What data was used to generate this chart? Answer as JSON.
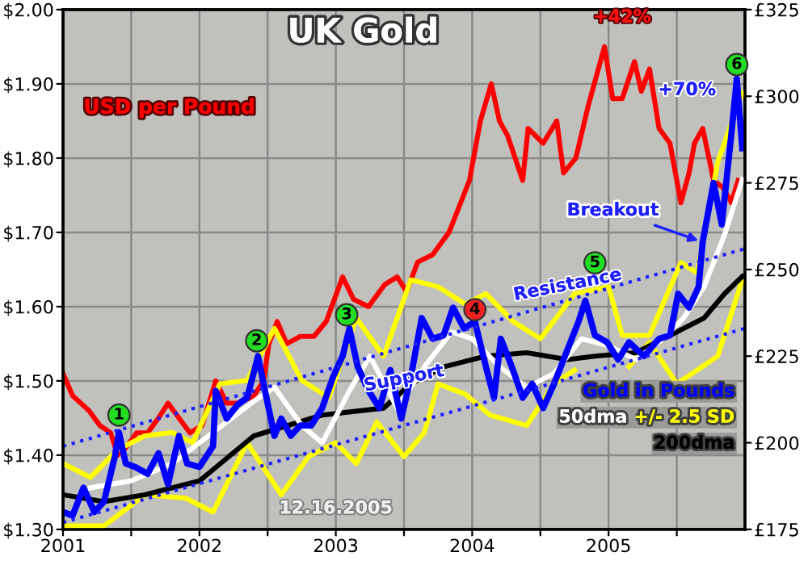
{
  "chart_data": {
    "type": "line",
    "title": "UK Gold",
    "xlim": [
      2001,
      2006
    ],
    "xticks": [
      2001,
      {
        "value": 2001.5,
        "label": null
      },
      2002,
      {
        "value": 2002.5,
        "label": null
      },
      2003,
      {
        "value": 2003.5,
        "label": null
      },
      2004,
      {
        "value": 2004.5,
        "label": null
      },
      2005,
      {
        "value": 2005.5,
        "label": null
      }
    ],
    "ylim": [
      1.3,
      2.0
    ],
    "yticks": [
      {
        "value": 1.3,
        "label": "$1.30"
      },
      {
        "value": 1.4,
        "label": "$1.40"
      },
      {
        "value": 1.5,
        "label": "$1.50"
      },
      {
        "value": 1.6,
        "label": "$1.60"
      },
      {
        "value": 1.7,
        "label": "$1.70"
      },
      {
        "value": 1.8,
        "label": "$1.80"
      },
      {
        "value": 1.9,
        "label": "$1.90"
      },
      {
        "value": 2.0,
        "label": "$2.00"
      }
    ],
    "y2lim": [
      175,
      325
    ],
    "y2ticks": [
      {
        "value": 175,
        "label": "£175"
      },
      {
        "value": 200,
        "label": "£200"
      },
      {
        "value": 225,
        "label": "£225"
      },
      {
        "value": 250,
        "label": "£250"
      },
      {
        "value": 275,
        "label": "£275"
      },
      {
        "value": 300,
        "label": "£300"
      },
      {
        "value": 325,
        "label": "£325"
      }
    ],
    "grid": true,
    "ylabel": "USD per Pound",
    "legend": "bottom right",
    "series": [
      {
        "name": null,
        "color": "#ff0000",
        "axis": "y",
        "x": [
          2001.0,
          2001.07,
          2001.19,
          2001.27,
          2001.35,
          2001.4,
          2001.46,
          2001.54,
          2001.62,
          2001.7,
          2001.77,
          2001.85,
          2001.93,
          2002.02,
          2002.12,
          2002.2,
          2002.29,
          2002.4,
          2002.47,
          2002.51,
          2002.57,
          2002.64,
          2002.74,
          2002.84,
          2002.93,
          2003.05,
          2003.13,
          2003.24,
          2003.36,
          2003.45,
          2003.52,
          2003.6,
          2003.71,
          2003.83,
          2003.98,
          2004.06,
          2004.14,
          2004.2,
          2004.26,
          2004.37,
          2004.41,
          2004.52,
          2004.62,
          2004.67,
          2004.76,
          2004.85,
          2004.97,
          2005.03,
          2005.1,
          2005.19,
          2005.24,
          2005.3,
          2005.37,
          2005.45,
          2005.53,
          2005.59,
          2005.63,
          2005.69,
          2005.77,
          2005.84,
          2005.9,
          2005.95
        ],
        "values": [
          1.51,
          1.48,
          1.46,
          1.44,
          1.43,
          1.4,
          1.41,
          1.43,
          1.43,
          1.45,
          1.47,
          1.45,
          1.43,
          1.44,
          1.5,
          1.47,
          1.47,
          1.48,
          1.5,
          1.55,
          1.58,
          1.55,
          1.56,
          1.56,
          1.58,
          1.64,
          1.61,
          1.6,
          1.63,
          1.64,
          1.62,
          1.66,
          1.67,
          1.7,
          1.77,
          1.85,
          1.9,
          1.85,
          1.83,
          1.77,
          1.84,
          1.82,
          1.85,
          1.78,
          1.8,
          1.87,
          1.95,
          1.88,
          1.88,
          1.93,
          1.89,
          1.92,
          1.84,
          1.82,
          1.74,
          1.78,
          1.82,
          1.84,
          1.77,
          1.76,
          1.74,
          1.77
        ]
      },
      {
        "name": null,
        "color": "#ffff00",
        "axis": "y2",
        "x": [
          2001.0,
          2001.3,
          2001.6,
          2001.9,
          2002.1,
          2002.35,
          2002.6,
          2002.8,
          2003.0,
          2003.15,
          2003.3,
          2003.5,
          2003.65,
          2003.75,
          2003.95,
          2004.13,
          2004.4,
          2004.6,
          2004.75,
          2004.9,
          2005.15,
          2005.3,
          2005.5,
          2005.65,
          2005.8,
          2005.98
        ],
        "values": [
          176,
          176,
          185,
          184,
          180,
          200,
          185,
          196,
          200,
          194,
          206,
          196,
          203,
          217,
          214,
          208,
          205,
          217,
          221,
          null,
          222,
          229,
          217,
          221,
          225,
          247
        ]
      },
      {
        "name": "+/- 2.5 SD",
        "color": "#ffff00",
        "axis": "y2",
        "x": [
          2001.0,
          2001.2,
          2001.4,
          2001.6,
          2001.8,
          2001.95,
          2002.15,
          2002.35,
          2002.55,
          2002.75,
          2002.95,
          2003.15,
          2003.35,
          2003.55,
          2003.75,
          2003.95,
          2004.1,
          2004.3,
          2004.5,
          2004.75,
          2005.0,
          2005.1,
          2005.3,
          2005.53,
          2005.65,
          2005.8,
          2005.98
        ],
        "values": [
          194,
          190,
          198,
          202,
          203,
          200,
          217,
          218,
          233,
          218,
          213,
          236,
          225,
          247,
          245,
          240,
          243,
          235,
          230,
          243,
          245,
          231,
          231,
          252,
          249,
          281,
          301
        ]
      },
      {
        "name": "200dma",
        "color": "#000000",
        "axis": "y2",
        "x": [
          2001.0,
          2001.3,
          2001.6,
          2002.0,
          2002.4,
          2002.9,
          2003.35,
          2003.55,
          2003.8,
          2004.1,
          2004.4,
          2004.7,
          2004.9,
          2005.2,
          2005.5,
          2005.7,
          2005.85,
          2005.98
        ],
        "values": [
          185,
          183,
          185,
          189,
          202,
          208,
          210,
          217,
          222,
          225,
          226,
          224,
          225,
          226,
          232,
          236,
          243,
          248
        ]
      },
      {
        "name": "50dma",
        "color": "#ffffff",
        "axis": "y2",
        "x": [
          2001.2,
          2001.5,
          2001.8,
          2002.0,
          2002.2,
          2002.4,
          2002.55,
          2002.75,
          2002.9,
          2003.1,
          2003.25,
          2003.45,
          2003.65,
          2003.85,
          2004.0,
          2004.2,
          2004.4,
          2004.6,
          2004.8,
          2005.0,
          2005.2,
          2005.4,
          2005.55,
          2005.7,
          2005.85,
          2005.98
        ],
        "values": [
          187,
          189,
          194,
          200,
          206,
          212,
          216,
          205,
          200,
          215,
          225,
          210,
          222,
          232,
          230,
          222,
          216,
          220,
          230,
          228,
          224,
          230,
          236,
          245,
          260,
          276
        ]
      },
      {
        "name": "Gold in Pounds",
        "color": "#0000ff",
        "axis": "y2",
        "x": [
          2001.0,
          2001.07,
          2001.15,
          2001.23,
          2001.3,
          2001.38,
          2001.41,
          2001.46,
          2001.53,
          2001.62,
          2001.7,
          2001.77,
          2001.85,
          2001.91,
          2002.0,
          2002.1,
          2002.12,
          2002.2,
          2002.28,
          2002.35,
          2002.43,
          2002.47,
          2002.55,
          2002.6,
          2002.67,
          2002.74,
          2002.82,
          2002.9,
          2002.98,
          2003.05,
          2003.1,
          2003.16,
          2003.24,
          2003.32,
          2003.4,
          2003.48,
          2003.55,
          2003.63,
          2003.71,
          2003.79,
          2003.86,
          2003.94,
          2004.02,
          2004.1,
          2004.16,
          2004.21,
          2004.29,
          2004.37,
          2004.44,
          2004.52,
          2004.6,
          2004.67,
          2004.78,
          2004.83,
          2004.9,
          2004.99,
          2005.07,
          2005.15,
          2005.26,
          2005.37,
          2005.45,
          2005.51,
          2005.59,
          2005.66,
          2005.69,
          2005.77,
          2005.83,
          2005.9,
          2005.94,
          2005.98
        ],
        "values": [
          180,
          179,
          187,
          180,
          183,
          196,
          203,
          194,
          193,
          191,
          197,
          188,
          202,
          194,
          193,
          199,
          215,
          207,
          211,
          213,
          225,
          217,
          202,
          207,
          202,
          205,
          205,
          210,
          219,
          225,
          233,
          222,
          215,
          210,
          221,
          207,
          219,
          236,
          230,
          231,
          239,
          233,
          235,
          222,
          213,
          230,
          222,
          213,
          217,
          210,
          217,
          224,
          235,
          241,
          231,
          229,
          224,
          229,
          225,
          230,
          231,
          243,
          239,
          245,
          258,
          275,
          263,
          289,
          305,
          285
        ]
      },
      {
        "name": null,
        "color": "#2020ff",
        "axis": "y2",
        "line_style": "dotted",
        "x": [
          2001,
          2006
        ],
        "values": [
          199,
          256
        ]
      },
      {
        "name": null,
        "color": "#2020ff",
        "axis": "y2",
        "line_style": "dotted",
        "x": [
          2001,
          2006
        ],
        "values": [
          177,
          233
        ]
      }
    ],
    "annotations": [
      {
        "text": "1",
        "x": 2001.41,
        "y": 1.454
      },
      {
        "text": "2",
        "x": 2002.42,
        "y": 1.554
      },
      {
        "text": "3",
        "x": 2003.08,
        "y": 1.589
      },
      {
        "text": "4",
        "x": 2004.02,
        "y": 1.596
      },
      {
        "text": "5",
        "x": 2004.9,
        "y": 1.659
      },
      {
        "text": "6",
        "x": 2005.94,
        "y": 1.926
      },
      "+42%",
      "+70%",
      {
        "text": "Breakout",
        "x": 2005.69,
        "y": 1.687
      },
      "Resistance",
      "Support",
      "12.16.2005"
    ]
  }
}
